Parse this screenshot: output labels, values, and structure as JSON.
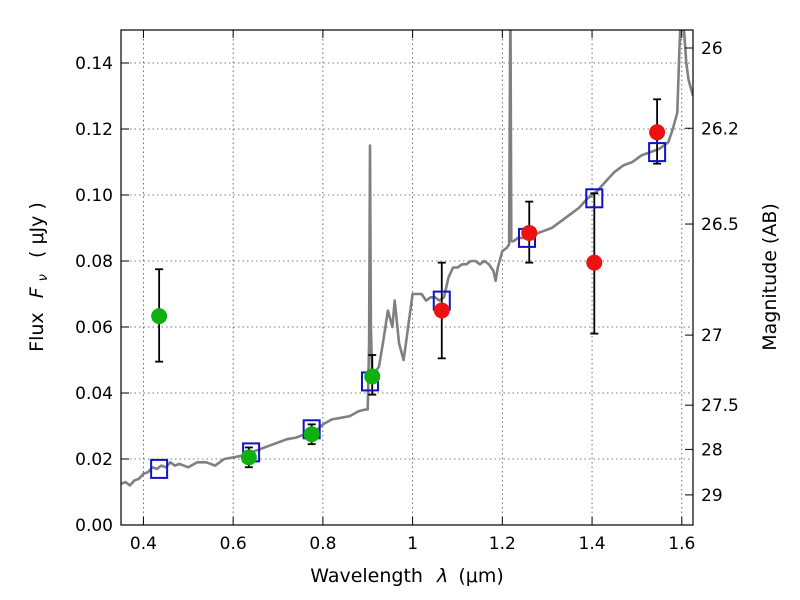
{
  "chart_data": {
    "type": "scatter",
    "xlabel": {
      "prefix": "Wavelength",
      "lambda": "λ",
      "unit": "(μm)"
    },
    "ylabel": {
      "prefix": "Flux",
      "F": "F",
      "nu": "ν",
      "unit": "( μJy )"
    },
    "y2label": "Magnitude (AB)",
    "xlim": [
      0.35,
      1.625
    ],
    "ylim": [
      0,
      0.15
    ],
    "grid": true,
    "x_ticks": [
      {
        "v": 0.4,
        "label": "0.4"
      },
      {
        "v": 0.6,
        "label": "0.6"
      },
      {
        "v": 0.8,
        "label": "0.8"
      },
      {
        "v": 1.0,
        "label": "1"
      },
      {
        "v": 1.2,
        "label": "1.2"
      },
      {
        "v": 1.4,
        "label": "1.4"
      },
      {
        "v": 1.6,
        "label": "1.6"
      }
    ],
    "y_ticks": [
      {
        "v": 0.0,
        "label": "0.00"
      },
      {
        "v": 0.02,
        "label": "0.02"
      },
      {
        "v": 0.04,
        "label": "0.04"
      },
      {
        "v": 0.06,
        "label": "0.06"
      },
      {
        "v": 0.08,
        "label": "0.08"
      },
      {
        "v": 0.1,
        "label": "0.10"
      },
      {
        "v": 0.12,
        "label": "0.12"
      },
      {
        "v": 0.14,
        "label": "0.14"
      }
    ],
    "mag_ticks": [
      {
        "mag": 26,
        "label": "26"
      },
      {
        "mag": 26.2,
        "label": "26.2"
      },
      {
        "mag": 26.5,
        "label": "26.5"
      },
      {
        "mag": 27,
        "label": "27"
      },
      {
        "mag": 27.5,
        "label": "27.5"
      },
      {
        "mag": 28,
        "label": "28"
      },
      {
        "mag": 29,
        "label": "29"
      }
    ],
    "colors": {
      "model": "#808080",
      "green": "#0fb00f",
      "red": "#ee1111",
      "box": "#1111cc",
      "errbar": "#000000"
    },
    "model_spectrum": [
      [
        0.35,
        0.0125
      ],
      [
        0.36,
        0.013
      ],
      [
        0.37,
        0.012
      ],
      [
        0.38,
        0.0135
      ],
      [
        0.39,
        0.014
      ],
      [
        0.4,
        0.0155
      ],
      [
        0.41,
        0.016
      ],
      [
        0.42,
        0.0175
      ],
      [
        0.43,
        0.017
      ],
      [
        0.44,
        0.018
      ],
      [
        0.45,
        0.0175
      ],
      [
        0.46,
        0.019
      ],
      [
        0.47,
        0.018
      ],
      [
        0.48,
        0.0185
      ],
      [
        0.5,
        0.0175
      ],
      [
        0.52,
        0.019
      ],
      [
        0.54,
        0.019
      ],
      [
        0.56,
        0.018
      ],
      [
        0.58,
        0.02
      ],
      [
        0.6,
        0.0205
      ],
      [
        0.62,
        0.021
      ],
      [
        0.64,
        0.022
      ],
      [
        0.66,
        0.023
      ],
      [
        0.68,
        0.024
      ],
      [
        0.7,
        0.025
      ],
      [
        0.72,
        0.026
      ],
      [
        0.74,
        0.0265
      ],
      [
        0.76,
        0.0275
      ],
      [
        0.78,
        0.028
      ],
      [
        0.8,
        0.0305
      ],
      [
        0.82,
        0.032
      ],
      [
        0.84,
        0.0325
      ],
      [
        0.86,
        0.033
      ],
      [
        0.88,
        0.0345
      ],
      [
        0.895,
        0.035
      ],
      [
        0.9,
        0.035
      ],
      [
        0.903,
        0.055
      ],
      [
        0.905,
        0.115
      ],
      [
        0.907,
        0.06
      ],
      [
        0.91,
        0.045
      ],
      [
        0.915,
        0.046
      ],
      [
        0.925,
        0.048
      ],
      [
        0.935,
        0.056
      ],
      [
        0.945,
        0.065
      ],
      [
        0.955,
        0.06
      ],
      [
        0.96,
        0.068
      ],
      [
        0.97,
        0.055
      ],
      [
        0.98,
        0.05
      ],
      [
        0.985,
        0.055
      ],
      [
        0.99,
        0.06
      ],
      [
        1.0,
        0.07
      ],
      [
        1.02,
        0.07
      ],
      [
        1.03,
        0.068
      ],
      [
        1.04,
        0.069
      ],
      [
        1.05,
        0.069
      ],
      [
        1.06,
        0.068
      ],
      [
        1.07,
        0.069
      ],
      [
        1.08,
        0.075
      ],
      [
        1.09,
        0.078
      ],
      [
        1.1,
        0.078
      ],
      [
        1.11,
        0.079
      ],
      [
        1.12,
        0.079
      ],
      [
        1.13,
        0.08
      ],
      [
        1.14,
        0.08
      ],
      [
        1.15,
        0.079
      ],
      [
        1.16,
        0.08
      ],
      [
        1.17,
        0.079
      ],
      [
        1.18,
        0.077
      ],
      [
        1.185,
        0.074
      ],
      [
        1.19,
        0.078
      ],
      [
        1.2,
        0.083
      ],
      [
        1.21,
        0.084
      ],
      [
        1.215,
        0.085
      ],
      [
        1.218,
        0.16
      ],
      [
        1.22,
        0.086
      ],
      [
        1.225,
        0.086
      ],
      [
        1.235,
        0.087
      ],
      [
        1.25,
        0.087
      ],
      [
        1.27,
        0.088
      ],
      [
        1.29,
        0.089
      ],
      [
        1.31,
        0.09
      ],
      [
        1.33,
        0.092
      ],
      [
        1.35,
        0.094
      ],
      [
        1.37,
        0.096
      ],
      [
        1.39,
        0.099
      ],
      [
        1.41,
        0.101
      ],
      [
        1.43,
        0.104
      ],
      [
        1.45,
        0.107
      ],
      [
        1.47,
        0.109
      ],
      [
        1.49,
        0.11
      ],
      [
        1.51,
        0.112
      ],
      [
        1.53,
        0.113
      ],
      [
        1.55,
        0.114
      ],
      [
        1.57,
        0.116
      ],
      [
        1.58,
        0.12
      ],
      [
        1.59,
        0.125
      ],
      [
        1.595,
        0.145
      ],
      [
        1.6,
        0.16
      ],
      [
        1.605,
        0.15
      ],
      [
        1.61,
        0.14
      ],
      [
        1.615,
        0.135
      ],
      [
        1.625,
        0.13
      ]
    ],
    "boxes": [
      {
        "x": 0.435,
        "y": 0.017
      },
      {
        "x": 0.64,
        "y": 0.022
      },
      {
        "x": 0.775,
        "y": 0.029
      },
      {
        "x": 0.905,
        "y": 0.0435
      },
      {
        "x": 1.065,
        "y": 0.068
      },
      {
        "x": 1.255,
        "y": 0.087
      },
      {
        "x": 1.405,
        "y": 0.099
      },
      {
        "x": 1.545,
        "y": 0.113
      }
    ],
    "green_points": [
      {
        "x": 0.435,
        "y": 0.0633,
        "lo": 0.0495,
        "hi": 0.0775
      },
      {
        "x": 0.635,
        "y": 0.0205,
        "lo": 0.0175,
        "hi": 0.0235
      },
      {
        "x": 0.775,
        "y": 0.0275,
        "lo": 0.0245,
        "hi": 0.0305
      },
      {
        "x": 0.91,
        "y": 0.045,
        "lo": 0.0395,
        "hi": 0.0515
      }
    ],
    "red_points": [
      {
        "x": 1.065,
        "y": 0.065,
        "lo": 0.0505,
        "hi": 0.0795
      },
      {
        "x": 1.26,
        "y": 0.0885,
        "lo": 0.0795,
        "hi": 0.098
      },
      {
        "x": 1.405,
        "y": 0.0795,
        "lo": 0.058,
        "hi": 0.1005
      },
      {
        "x": 1.545,
        "y": 0.119,
        "lo": 0.1095,
        "hi": 0.129
      }
    ]
  }
}
